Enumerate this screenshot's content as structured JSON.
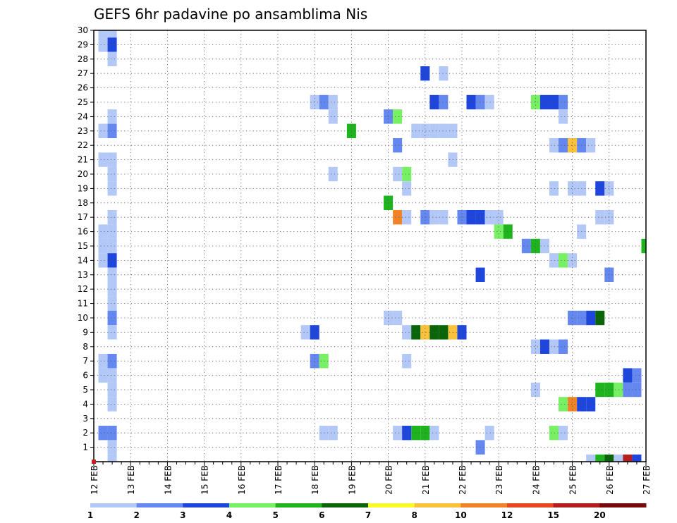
{
  "chart_data": {
    "type": "heatmap",
    "title": "GEFS 6hr padavine po ansamblima Nis",
    "xlabel": "",
    "ylabel": "",
    "x_tick_labels": [
      "12 FEB",
      "13 FEB",
      "14 FEB",
      "15 FEB",
      "16 FEB",
      "17 FEB",
      "18 FEB",
      "19 FEB",
      "20 FEB",
      "21 FEB",
      "22 FEB",
      "23 FEB",
      "24 FEB",
      "25 FEB",
      "26 FEB",
      "27 FEB"
    ],
    "y_tick_labels": [
      "1",
      "2",
      "3",
      "4",
      "5",
      "6",
      "7",
      "8",
      "9",
      "10",
      "11",
      "12",
      "13",
      "14",
      "15",
      "16",
      "17",
      "18",
      "19",
      "20",
      "21",
      "22",
      "23",
      "24",
      "25",
      "26",
      "27",
      "28",
      "29",
      "30"
    ],
    "xlim": [
      0,
      15
    ],
    "ylim": [
      0,
      30
    ],
    "time_step_days": 0.25,
    "grid": true,
    "colorbar": {
      "levels": [
        1,
        2,
        3,
        4,
        5,
        6,
        7,
        8,
        10,
        12,
        15,
        20
      ],
      "tick_labels": [
        "1",
        "2",
        "3",
        "4",
        "5",
        "6",
        "7",
        "8",
        "10",
        "12",
        "15",
        "20"
      ],
      "colors": [
        "#b4c8f8",
        "#6488f0",
        "#1e46dc",
        "#78f064",
        "#1eb41e",
        "#0a640a",
        "#fafa28",
        "#fac23c",
        "#f08228",
        "#e6461e",
        "#b41e1e",
        "#780a0a"
      ]
    },
    "cells": [
      {
        "t": 0.25,
        "m": 29,
        "v": 1.5
      },
      {
        "t": 0.5,
        "m": 29,
        "v": 3.5
      },
      {
        "t": 0.25,
        "m": 30,
        "v": 1.2
      },
      {
        "t": 0.5,
        "m": 30,
        "v": 1.2
      },
      {
        "t": 0.5,
        "m": 28,
        "v": 1.2
      },
      {
        "t": 0.5,
        "m": 24,
        "v": 1.2
      },
      {
        "t": 0.25,
        "m": 23,
        "v": 1.2
      },
      {
        "t": 0.5,
        "m": 23,
        "v": 2.5
      },
      {
        "t": 0.25,
        "m": 21,
        "v": 1.2
      },
      {
        "t": 0.5,
        "m": 21,
        "v": 1.2
      },
      {
        "t": 0.5,
        "m": 20,
        "v": 1.2
      },
      {
        "t": 0.5,
        "m": 19,
        "v": 1.2
      },
      {
        "t": 0.5,
        "m": 17,
        "v": 1.2
      },
      {
        "t": 0.25,
        "m": 16,
        "v": 1.2
      },
      {
        "t": 0.5,
        "m": 16,
        "v": 1.2
      },
      {
        "t": 0.25,
        "m": 15,
        "v": 1.2
      },
      {
        "t": 0.5,
        "m": 15,
        "v": 1.2
      },
      {
        "t": 0.25,
        "m": 14,
        "v": 1.2
      },
      {
        "t": 0.5,
        "m": 14,
        "v": 3.5
      },
      {
        "t": 0.5,
        "m": 13,
        "v": 1.2
      },
      {
        "t": 0.5,
        "m": 12,
        "v": 1.2
      },
      {
        "t": 0.5,
        "m": 11,
        "v": 1.2
      },
      {
        "t": 0.5,
        "m": 10,
        "v": 2.5
      },
      {
        "t": 0.5,
        "m": 9,
        "v": 1.2
      },
      {
        "t": 0.25,
        "m": 7,
        "v": 1.2
      },
      {
        "t": 0.5,
        "m": 7,
        "v": 2.5
      },
      {
        "t": 0.25,
        "m": 6,
        "v": 1.2
      },
      {
        "t": 0.5,
        "m": 6,
        "v": 1.2
      },
      {
        "t": 0.5,
        "m": 5,
        "v": 1.2
      },
      {
        "t": 0.5,
        "m": 4,
        "v": 1.2
      },
      {
        "t": 0.25,
        "m": 2,
        "v": 2.5
      },
      {
        "t": 0.5,
        "m": 2,
        "v": 2.5
      },
      {
        "t": 0.5,
        "m": 1,
        "v": 1.2
      },
      {
        "t": 0.5,
        "m": 0,
        "v": 1.2
      },
      {
        "t": 6.0,
        "m": 25,
        "v": 1.2
      },
      {
        "t": 6.25,
        "m": 25,
        "v": 2.5
      },
      {
        "t": 6.5,
        "m": 25,
        "v": 1.2
      },
      {
        "t": 6.5,
        "m": 24,
        "v": 1.2
      },
      {
        "t": 7.0,
        "m": 23,
        "v": 5.5
      },
      {
        "t": 6.5,
        "m": 20,
        "v": 1.2
      },
      {
        "t": 5.75,
        "m": 9,
        "v": 1.2
      },
      {
        "t": 6.0,
        "m": 9,
        "v": 3.5
      },
      {
        "t": 6.0,
        "m": 7,
        "v": 2.5
      },
      {
        "t": 6.25,
        "m": 7,
        "v": 4.5
      },
      {
        "t": 6.25,
        "m": 2,
        "v": 1.2
      },
      {
        "t": 6.5,
        "m": 2,
        "v": 1.2
      },
      {
        "t": 8.0,
        "m": 24,
        "v": 2.5
      },
      {
        "t": 8.25,
        "m": 24,
        "v": 4.5
      },
      {
        "t": 8.0,
        "m": 18,
        "v": 5.5
      },
      {
        "t": 8.25,
        "m": 22,
        "v": 2.5
      },
      {
        "t": 8.25,
        "m": 20,
        "v": 1.2
      },
      {
        "t": 8.5,
        "m": 20,
        "v": 4.5
      },
      {
        "t": 8.5,
        "m": 19,
        "v": 1.2
      },
      {
        "t": 8.25,
        "m": 17,
        "v": 11
      },
      {
        "t": 8.5,
        "m": 17,
        "v": 1.2
      },
      {
        "t": 8.0,
        "m": 10,
        "v": 1.2
      },
      {
        "t": 8.25,
        "m": 10,
        "v": 1.2
      },
      {
        "t": 8.5,
        "m": 9,
        "v": 1.2
      },
      {
        "t": 8.75,
        "m": 9,
        "v": 6.5
      },
      {
        "t": 9.0,
        "m": 9,
        "v": 9
      },
      {
        "t": 9.25,
        "m": 9,
        "v": 6.5
      },
      {
        "t": 9.5,
        "m": 9,
        "v": 6.5
      },
      {
        "t": 9.75,
        "m": 9,
        "v": 9
      },
      {
        "t": 10.0,
        "m": 9,
        "v": 3.5
      },
      {
        "t": 8.5,
        "m": 7,
        "v": 1.2
      },
      {
        "t": 8.25,
        "m": 2,
        "v": 1.2
      },
      {
        "t": 8.5,
        "m": 2,
        "v": 3.5
      },
      {
        "t": 8.75,
        "m": 2,
        "v": 5.5
      },
      {
        "t": 9.0,
        "m": 2,
        "v": 5.5
      },
      {
        "t": 9.25,
        "m": 2,
        "v": 1.2
      },
      {
        "t": 9.0,
        "m": 27,
        "v": 3.5
      },
      {
        "t": 9.5,
        "m": 27,
        "v": 1.2
      },
      {
        "t": 9.25,
        "m": 25,
        "v": 3.5
      },
      {
        "t": 9.5,
        "m": 25,
        "v": 2.5
      },
      {
        "t": 8.75,
        "m": 23,
        "v": 1.2
      },
      {
        "t": 9.0,
        "m": 23,
        "v": 1.2
      },
      {
        "t": 9.25,
        "m": 23,
        "v": 1.2
      },
      {
        "t": 9.5,
        "m": 23,
        "v": 1.2
      },
      {
        "t": 9.75,
        "m": 23,
        "v": 1.2
      },
      {
        "t": 9.75,
        "m": 21,
        "v": 1.2
      },
      {
        "t": 9.0,
        "m": 17,
        "v": 2.5
      },
      {
        "t": 9.25,
        "m": 17,
        "v": 1.2
      },
      {
        "t": 9.5,
        "m": 17,
        "v": 1.2
      },
      {
        "t": 10.25,
        "m": 25,
        "v": 3.5
      },
      {
        "t": 10.5,
        "m": 25,
        "v": 2.5
      },
      {
        "t": 10.75,
        "m": 25,
        "v": 1.2
      },
      {
        "t": 10.0,
        "m": 17,
        "v": 2.5
      },
      {
        "t": 10.25,
        "m": 17,
        "v": 3.5
      },
      {
        "t": 10.5,
        "m": 17,
        "v": 3.5
      },
      {
        "t": 10.75,
        "m": 17,
        "v": 1.2
      },
      {
        "t": 11.0,
        "m": 17,
        "v": 1.2
      },
      {
        "t": 11.0,
        "m": 16,
        "v": 4.5
      },
      {
        "t": 11.25,
        "m": 16,
        "v": 5.5
      },
      {
        "t": 10.5,
        "m": 13,
        "v": 3.5
      },
      {
        "t": 10.5,
        "m": 1,
        "v": 2.5
      },
      {
        "t": 10.75,
        "m": 2,
        "v": 1.2
      },
      {
        "t": 12.0,
        "m": 25,
        "v": 4.5
      },
      {
        "t": 12.25,
        "m": 25,
        "v": 3.5
      },
      {
        "t": 12.5,
        "m": 25,
        "v": 3.5
      },
      {
        "t": 12.75,
        "m": 25,
        "v": 2.5
      },
      {
        "t": 12.75,
        "m": 24,
        "v": 1.2
      },
      {
        "t": 12.5,
        "m": 22,
        "v": 1.2
      },
      {
        "t": 12.75,
        "m": 22,
        "v": 2.5
      },
      {
        "t": 13.0,
        "m": 22,
        "v": 9
      },
      {
        "t": 13.25,
        "m": 22,
        "v": 2.5
      },
      {
        "t": 13.5,
        "m": 22,
        "v": 1.2
      },
      {
        "t": 12.5,
        "m": 19,
        "v": 1.2
      },
      {
        "t": 13.0,
        "m": 19,
        "v": 1.2
      },
      {
        "t": 13.25,
        "m": 19,
        "v": 1.2
      },
      {
        "t": 13.75,
        "m": 19,
        "v": 3.5
      },
      {
        "t": 14.0,
        "m": 19,
        "v": 1.2
      },
      {
        "t": 13.75,
        "m": 17,
        "v": 1.2
      },
      {
        "t": 14.0,
        "m": 17,
        "v": 1.2
      },
      {
        "t": 13.25,
        "m": 16,
        "v": 1.2
      },
      {
        "t": 11.75,
        "m": 15,
        "v": 2.5
      },
      {
        "t": 12.0,
        "m": 15,
        "v": 5.5
      },
      {
        "t": 12.25,
        "m": 15,
        "v": 1.2
      },
      {
        "t": 15.0,
        "m": 15,
        "v": 5.5
      },
      {
        "t": 12.5,
        "m": 14,
        "v": 1.2
      },
      {
        "t": 12.75,
        "m": 14,
        "v": 4.5
      },
      {
        "t": 13.0,
        "m": 14,
        "v": 1.2
      },
      {
        "t": 14.0,
        "m": 13,
        "v": 2.5
      },
      {
        "t": 13.0,
        "m": 10,
        "v": 2.5
      },
      {
        "t": 13.25,
        "m": 10,
        "v": 2.5
      },
      {
        "t": 13.5,
        "m": 10,
        "v": 3.5
      },
      {
        "t": 13.75,
        "m": 10,
        "v": 6.5
      },
      {
        "t": 12.0,
        "m": 8,
        "v": 1.2
      },
      {
        "t": 12.25,
        "m": 8,
        "v": 3.5
      },
      {
        "t": 12.5,
        "m": 8,
        "v": 1.2
      },
      {
        "t": 12.75,
        "m": 8,
        "v": 2.5
      },
      {
        "t": 14.5,
        "m": 6,
        "v": 3.5
      },
      {
        "t": 14.75,
        "m": 6,
        "v": 2.5
      },
      {
        "t": 12.0,
        "m": 5,
        "v": 1.2
      },
      {
        "t": 13.75,
        "m": 5,
        "v": 5.5
      },
      {
        "t": 14.0,
        "m": 5,
        "v": 5.5
      },
      {
        "t": 14.25,
        "m": 5,
        "v": 4.5
      },
      {
        "t": 14.5,
        "m": 5,
        "v": 2.5
      },
      {
        "t": 14.75,
        "m": 5,
        "v": 2.5
      },
      {
        "t": 12.75,
        "m": 4,
        "v": 4.5
      },
      {
        "t": 13.0,
        "m": 4,
        "v": 11
      },
      {
        "t": 13.25,
        "m": 4,
        "v": 3.5
      },
      {
        "t": 13.5,
        "m": 4,
        "v": 3.5
      },
      {
        "t": 12.5,
        "m": 2,
        "v": 4.5
      },
      {
        "t": 12.75,
        "m": 2,
        "v": 1.2
      },
      {
        "t": 13.5,
        "m": 0,
        "v": 1.2
      },
      {
        "t": 13.75,
        "m": 0,
        "v": 5.5
      },
      {
        "t": 14.0,
        "m": 0,
        "v": 6.5
      },
      {
        "t": 14.25,
        "m": 0,
        "v": 1.2
      },
      {
        "t": 14.5,
        "m": 0,
        "v": 16
      },
      {
        "t": 14.75,
        "m": 0,
        "v": 3.5
      }
    ]
  }
}
